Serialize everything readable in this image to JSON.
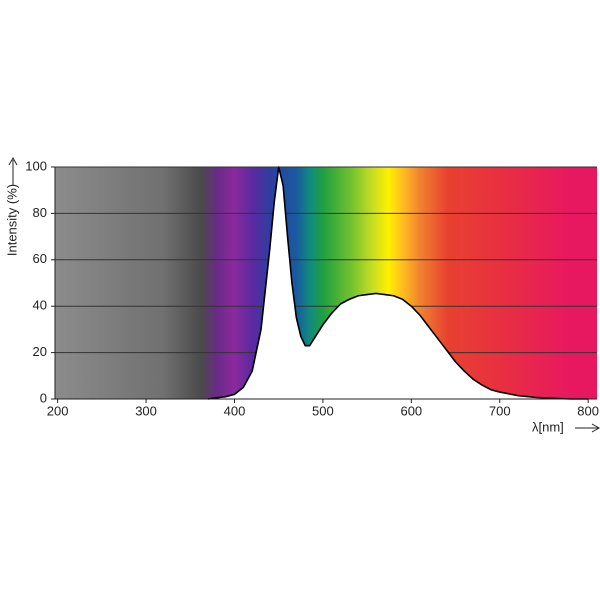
{
  "chart_data": {
    "type": "area",
    "y_label": "Intensity (%)",
    "x_label": "λ[nm]",
    "x": [
      370,
      380,
      390,
      400,
      410,
      420,
      430,
      440,
      445,
      450,
      455,
      460,
      465,
      470,
      475,
      480,
      485,
      490,
      500,
      510,
      520,
      530,
      540,
      550,
      560,
      570,
      580,
      590,
      600,
      610,
      620,
      630,
      640,
      650,
      660,
      670,
      680,
      690,
      700,
      720,
      740,
      760,
      780,
      800
    ],
    "values": [
      0,
      0.5,
      1,
      2,
      5,
      12,
      30,
      65,
      85,
      100,
      92,
      70,
      50,
      35,
      27,
      23,
      23,
      26,
      32,
      37,
      41,
      43,
      44.5,
      45,
      45.5,
      45,
      44.5,
      43,
      40,
      36,
      31,
      26,
      21,
      16,
      12,
      8.5,
      6,
      4,
      3,
      1.5,
      0.7,
      0.3,
      0,
      0
    ],
    "color": "#ffffff",
    "xlim": [
      197,
      810
    ],
    "xticks": [
      200,
      300,
      400,
      500,
      600,
      700,
      800
    ],
    "ylim": [
      0,
      100
    ],
    "yticks": [
      0,
      20,
      40,
      60,
      80,
      100
    ],
    "grid": true
  }
}
